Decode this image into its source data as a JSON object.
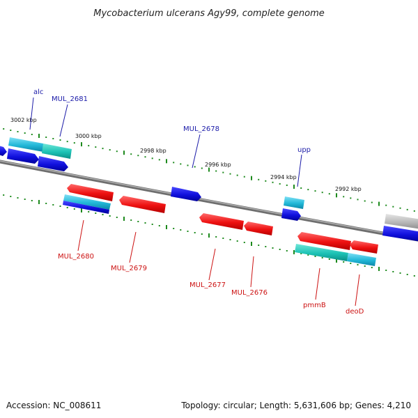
{
  "title": "Mycobacterium ulcerans Agy99, complete genome",
  "footer": {
    "accession": "Accession: NC_008611",
    "summary": "Topology: circular; Length: 5,631,606 bp; Genes: 4,210"
  },
  "colors": {
    "backbone": "#888888",
    "ticks": "#1d8a1d",
    "forward_gene": "#1010dd",
    "reverse_gene": "#ee1111",
    "rna_like": "#22b8d8",
    "partial": "#b8b8b8"
  },
  "kbp_labels": [
    "3002 kbp",
    "3000 kbp",
    "2998 kbp",
    "2996 kbp",
    "2994 kbp",
    "2992 kbp"
  ],
  "gene_labels": {
    "alc": "alc",
    "MUL_2681": "MUL_2681",
    "MUL_2678": "MUL_2678",
    "upp": "upp",
    "MUL_2680": "MUL_2680",
    "MUL_2679": "MUL_2679",
    "MUL_2677": "MUL_2677",
    "MUL_2676": "MUL_2676",
    "pmmB": "pmmB",
    "deoD": "deoD"
  }
}
